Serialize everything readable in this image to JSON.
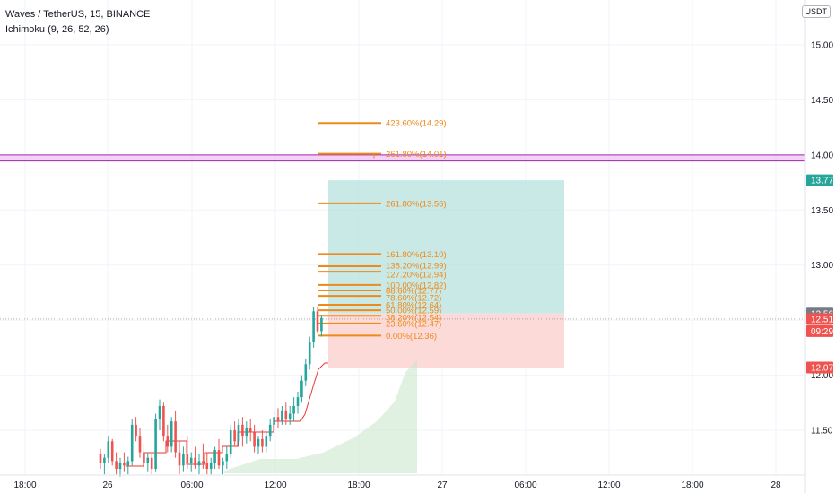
{
  "legend": {
    "symbol": "Waves / TetherUS, 15, BINANCE",
    "indicator": "Ichimoku (9, 26, 52, 26)"
  },
  "currency_label": "USDT",
  "colors": {
    "up": "#26a69a",
    "down": "#ef5350",
    "fib": "#ef8a1a",
    "profit_zone": "#b2dfdb",
    "loss_zone": "#fcd6d4",
    "resistance": "#9c27b0",
    "resistance_fill": "#f3c4f5",
    "kijun": "#e53935",
    "cloud": "#c8e6c9"
  },
  "chart_data": {
    "type": "candlestick",
    "y_axis": {
      "ticks": [
        "11.50",
        "12.00",
        "12.50",
        "13.00",
        "13.50",
        "14.00",
        "14.50",
        "15.00"
      ],
      "ylim": [
        11.19,
        15.25
      ]
    },
    "x_axis": {
      "ticks": [
        "18:00",
        "26",
        "06:00",
        "12:00",
        "18:00",
        "27",
        "06:00",
        "12:00",
        "18:00",
        "28"
      ]
    },
    "price_tags": [
      {
        "label": "13.77",
        "value": 13.77,
        "color": "#26a69a"
      },
      {
        "label": "12.56",
        "value": 12.56,
        "color": "#787b86"
      },
      {
        "label": "12.51",
        "value": 12.51,
        "color": "#ef5350"
      },
      {
        "label": "09:29",
        "value": 12.4,
        "color": "#ef5350"
      },
      {
        "label": "12.07",
        "value": 12.07,
        "color": "#ef5350"
      }
    ],
    "fib_levels": [
      {
        "label": "423.60%(14.29)",
        "value": 14.29
      },
      {
        "label": "261.80%(14.01)",
        "value": 14.01
      },
      {
        "label": "261.80%(13.56)",
        "value": 13.56
      },
      {
        "label": "161.80%(13.10)",
        "value": 13.1
      },
      {
        "label": "138.20%(12.99)",
        "value": 12.99
      },
      {
        "label": "127.20%(12.94)",
        "value": 12.94
      },
      {
        "label": "100.00%(12.82)",
        "value": 12.82
      },
      {
        "label": "88.60%(12.77)",
        "value": 12.77
      },
      {
        "label": "78.60%(12.72)",
        "value": 12.72
      },
      {
        "label": "61.80%(12.64)",
        "value": 12.64
      },
      {
        "label": "50.00%(12.59)",
        "value": 12.59
      },
      {
        "label": "38.20%(12.54)",
        "value": 12.54
      },
      {
        "label": "23.60%(12.47)",
        "value": 12.47
      },
      {
        "label": "0.00%(12.36)",
        "value": 12.36
      }
    ],
    "position": {
      "entry": 12.56,
      "target": 13.77,
      "stop": 12.07
    },
    "resistance_band": [
      13.945,
      14.0
    ],
    "current_price": 12.51,
    "candles": [
      [
        11.28,
        11.33,
        11.15,
        11.2
      ],
      [
        11.2,
        11.28,
        11.1,
        11.25
      ],
      [
        11.25,
        11.45,
        11.2,
        11.4
      ],
      [
        11.4,
        11.42,
        11.18,
        11.22
      ],
      [
        11.22,
        11.3,
        11.1,
        11.15
      ],
      [
        11.15,
        11.25,
        11.08,
        11.2
      ],
      [
        11.2,
        11.3,
        11.12,
        11.18
      ],
      [
        11.18,
        11.26,
        11.1,
        11.22
      ],
      [
        11.22,
        11.6,
        11.18,
        11.55
      ],
      [
        11.55,
        11.62,
        11.4,
        11.45
      ],
      [
        11.45,
        11.52,
        11.25,
        11.3
      ],
      [
        11.3,
        11.38,
        11.15,
        11.2
      ],
      [
        11.2,
        11.3,
        11.12,
        11.25
      ],
      [
        11.25,
        11.28,
        11.1,
        11.15
      ],
      [
        11.15,
        11.65,
        11.12,
        11.6
      ],
      [
        11.6,
        11.78,
        11.5,
        11.72
      ],
      [
        11.72,
        11.75,
        11.4,
        11.45
      ],
      [
        11.45,
        11.55,
        11.3,
        11.35
      ],
      [
        11.35,
        11.62,
        11.3,
        11.58
      ],
      [
        11.58,
        11.68,
        11.25,
        11.3
      ],
      [
        11.3,
        11.4,
        11.1,
        11.18
      ],
      [
        11.18,
        11.35,
        11.12,
        11.28
      ],
      [
        11.28,
        11.45,
        11.15,
        11.2
      ],
      [
        11.2,
        11.3,
        11.12,
        11.25
      ],
      [
        11.25,
        11.35,
        11.15,
        11.18
      ],
      [
        11.18,
        11.28,
        11.1,
        11.22
      ],
      [
        11.22,
        11.38,
        11.15,
        11.2
      ],
      [
        11.2,
        11.3,
        11.1,
        11.15
      ],
      [
        11.15,
        11.25,
        11.1,
        11.2
      ],
      [
        11.2,
        11.35,
        11.15,
        11.32
      ],
      [
        11.32,
        11.42,
        11.15,
        11.18
      ],
      [
        11.18,
        11.25,
        11.1,
        11.22
      ],
      [
        11.22,
        11.35,
        11.15,
        11.28
      ],
      [
        11.28,
        11.55,
        11.25,
        11.5
      ],
      [
        11.5,
        11.58,
        11.35,
        11.4
      ],
      [
        11.4,
        11.6,
        11.35,
        11.55
      ],
      [
        11.55,
        11.62,
        11.35,
        11.45
      ],
      [
        11.45,
        11.58,
        11.38,
        11.52
      ],
      [
        11.52,
        11.6,
        11.4,
        11.48
      ],
      [
        11.48,
        11.55,
        11.3,
        11.35
      ],
      [
        11.35,
        11.45,
        11.28,
        11.42
      ],
      [
        11.42,
        11.5,
        11.3,
        11.35
      ],
      [
        11.35,
        11.48,
        11.3,
        11.45
      ],
      [
        11.45,
        11.6,
        11.4,
        11.55
      ],
      [
        11.55,
        11.68,
        11.5,
        11.62
      ],
      [
        11.62,
        11.7,
        11.52,
        11.58
      ],
      [
        11.58,
        11.72,
        11.55,
        11.68
      ],
      [
        11.68,
        11.75,
        11.55,
        11.6
      ],
      [
        11.6,
        11.72,
        11.55,
        11.65
      ],
      [
        11.65,
        11.8,
        11.58,
        11.72
      ],
      [
        11.72,
        11.85,
        11.65,
        11.8
      ],
      [
        11.8,
        12.0,
        11.75,
        11.95
      ],
      [
        11.95,
        12.15,
        11.9,
        12.1
      ],
      [
        12.1,
        12.35,
        12.05,
        12.3
      ],
      [
        12.3,
        12.62,
        12.25,
        12.58
      ],
      [
        12.58,
        12.62,
        12.38,
        12.4
      ],
      [
        12.4,
        12.55,
        12.35,
        12.52
      ]
    ]
  }
}
